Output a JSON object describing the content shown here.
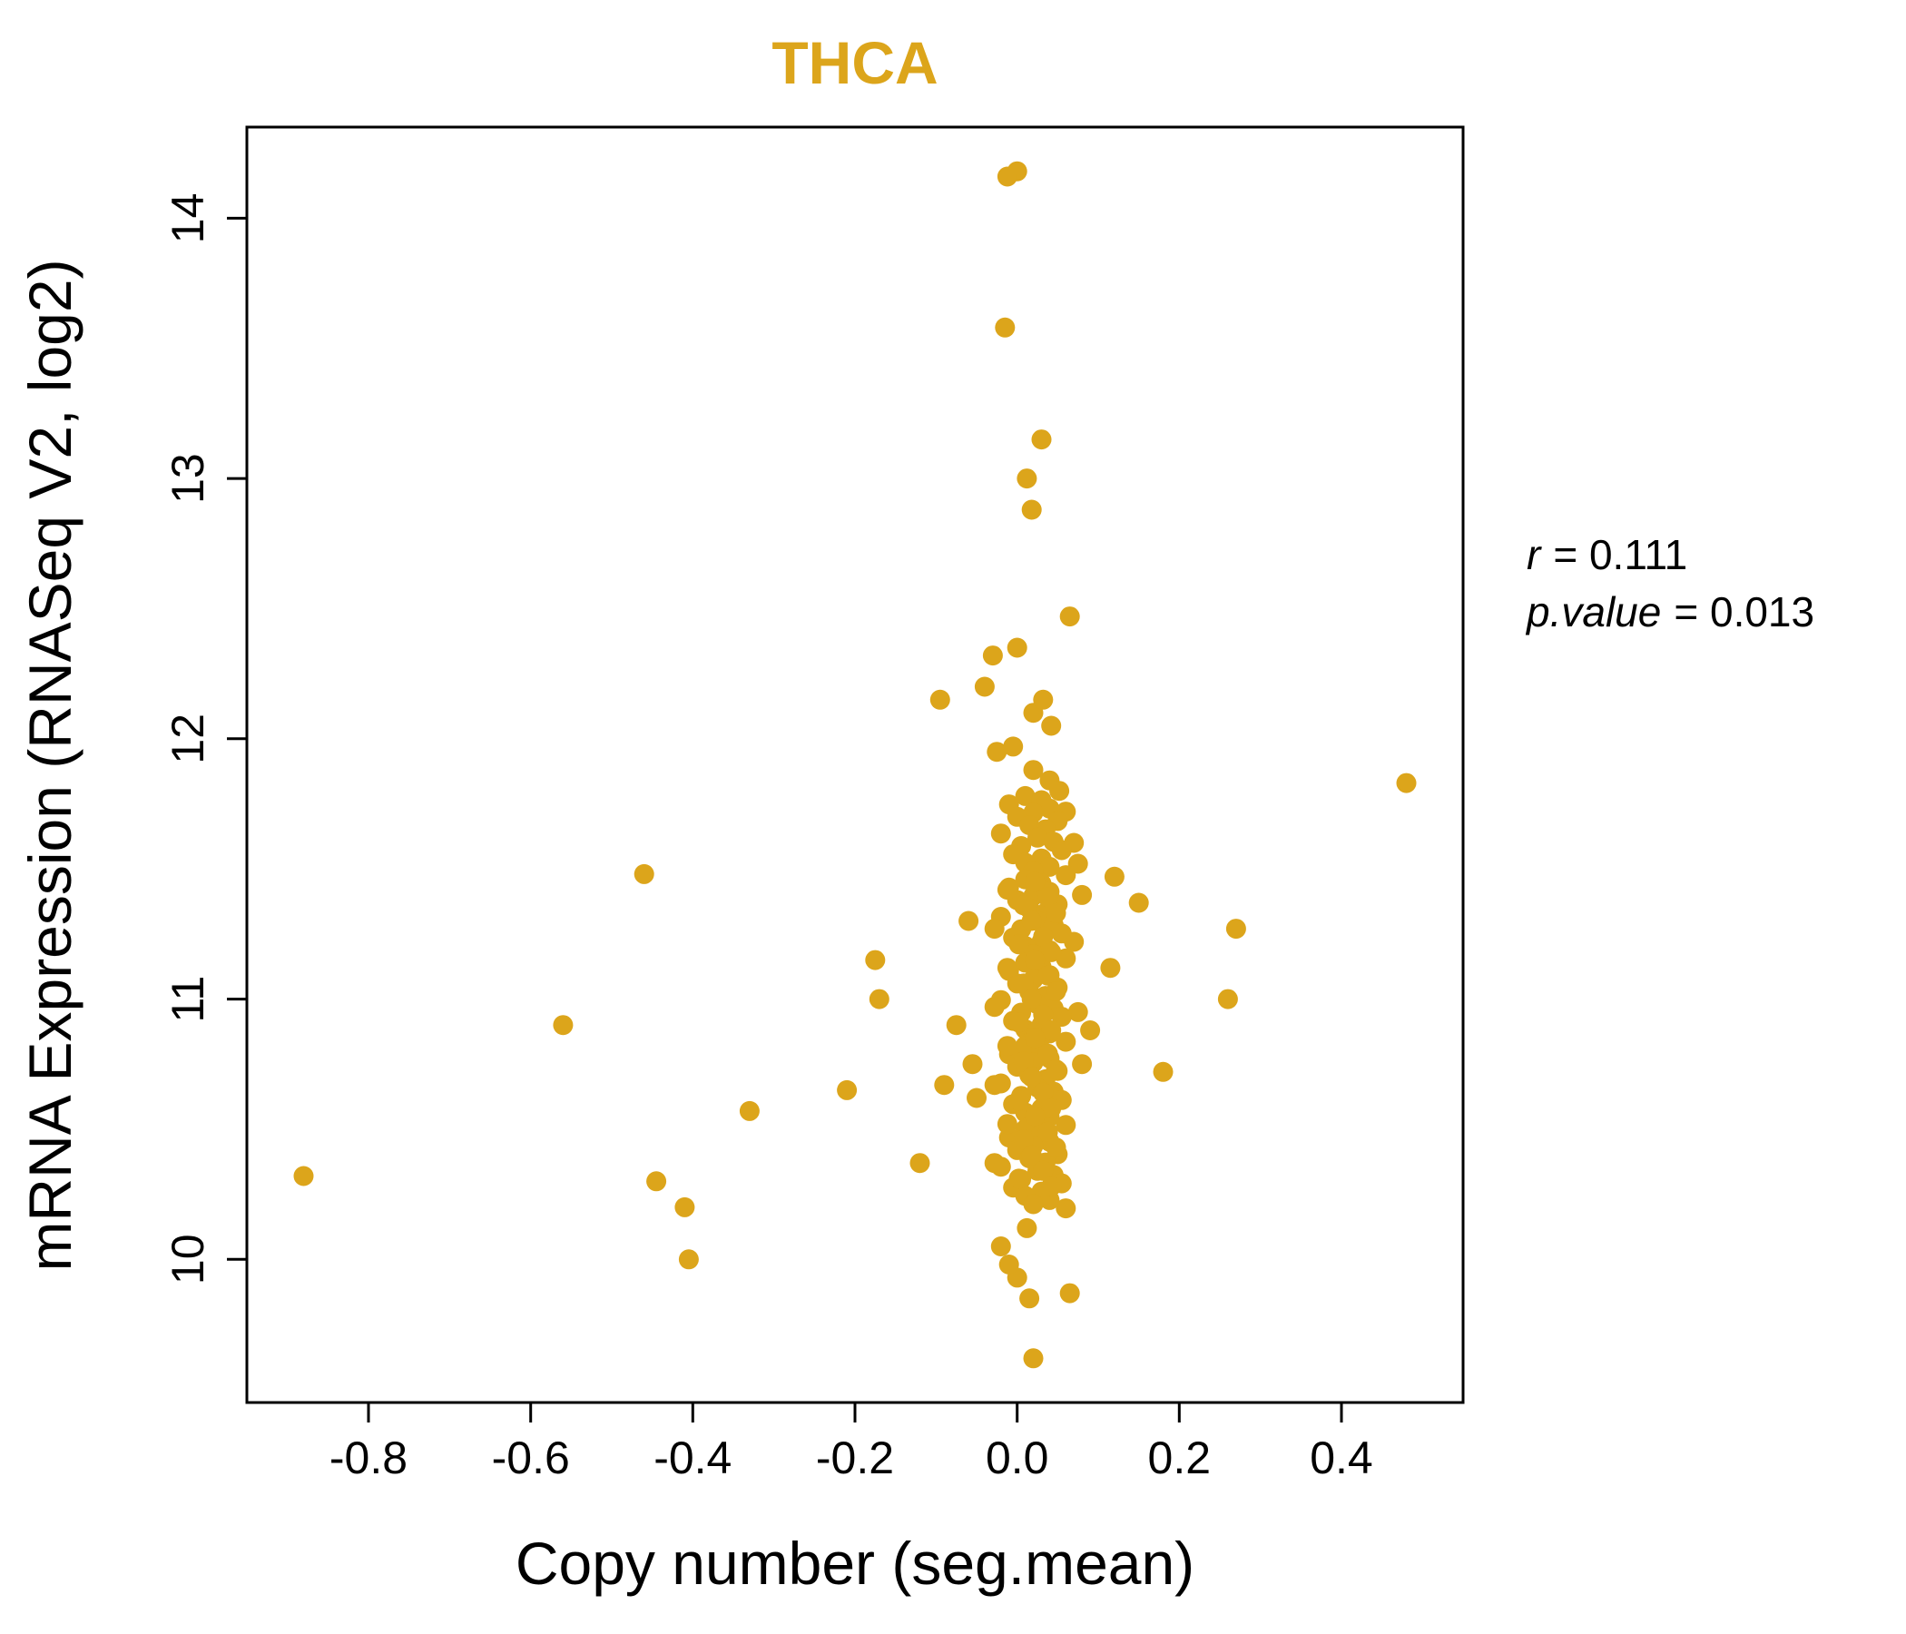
{
  "chart_data": {
    "type": "scatter",
    "title": "THCA",
    "title_color": "#DCA51B",
    "point_color": "#DCA51B",
    "xlabel": "Copy number (seg.mean)",
    "ylabel": "mRNA Expression (RNASeq V2, log2)",
    "xlim": [
      -0.95,
      0.55
    ],
    "ylim": [
      9.45,
      14.35
    ],
    "grid": false,
    "legend": "none",
    "x_ticks": [
      -0.8,
      -0.6,
      -0.4,
      -0.2,
      0.0,
      0.2,
      0.4
    ],
    "x_tick_labels": [
      "-0.8",
      "-0.6",
      "-0.4",
      "-0.2",
      "0.0",
      "0.2",
      "0.4"
    ],
    "y_ticks": [
      10,
      11,
      12,
      13,
      14
    ],
    "y_tick_labels": [
      "10",
      "11",
      "12",
      "13",
      "14"
    ],
    "annotation": {
      "r": 0.111,
      "p_value": 0.013,
      "r_label": "r",
      "r_value": "= 0.111",
      "p_label": "p.value",
      "p_value_text": "= 0.013"
    },
    "points": [
      [
        -0.88,
        10.32
      ],
      [
        -0.56,
        10.9
      ],
      [
        -0.46,
        11.48
      ],
      [
        -0.445,
        10.3
      ],
      [
        -0.41,
        10.2
      ],
      [
        -0.405,
        10.0
      ],
      [
        -0.33,
        10.57
      ],
      [
        -0.21,
        10.65
      ],
      [
        -0.175,
        11.15
      ],
      [
        -0.17,
        11.0
      ],
      [
        -0.12,
        10.37
      ],
      [
        -0.095,
        12.15
      ],
      [
        -0.09,
        10.67
      ],
      [
        -0.075,
        10.9
      ],
      [
        -0.06,
        11.3
      ],
      [
        -0.055,
        10.75
      ],
      [
        -0.05,
        10.62
      ],
      [
        -0.04,
        12.2
      ],
      [
        -0.03,
        12.32
      ],
      [
        -0.025,
        11.95
      ],
      [
        0.0,
        14.18
      ],
      [
        -0.012,
        14.16
      ],
      [
        -0.015,
        13.58
      ],
      [
        0.03,
        13.15
      ],
      [
        0.012,
        13.0
      ],
      [
        0.018,
        12.88
      ],
      [
        0.065,
        12.47
      ],
      [
        0.0,
        12.35
      ],
      [
        0.02,
        12.1
      ],
      [
        0.032,
        12.15
      ],
      [
        0.042,
        12.05
      ],
      [
        -0.005,
        11.97
      ],
      [
        0.02,
        11.88
      ],
      [
        0.04,
        11.84
      ],
      [
        0.052,
        11.8
      ],
      [
        0.06,
        11.72
      ],
      [
        0.07,
        11.6
      ],
      [
        0.075,
        11.52
      ],
      [
        0.48,
        11.83
      ],
      [
        0.27,
        11.27
      ],
      [
        0.26,
        11.0
      ],
      [
        0.18,
        10.72
      ],
      [
        0.15,
        11.37
      ],
      [
        0.12,
        11.47
      ],
      [
        0.115,
        11.12
      ],
      [
        0.08,
        11.4
      ],
      [
        0.09,
        10.88
      ],
      [
        0.07,
        11.22
      ],
      [
        0.08,
        10.75
      ],
      [
        0.075,
        10.95
      ],
      [
        -0.02,
        10.05
      ],
      [
        0.0,
        9.93
      ],
      [
        0.015,
        9.85
      ],
      [
        0.02,
        9.62
      ],
      [
        0.065,
        9.87
      ],
      [
        0.012,
        10.12
      ],
      [
        -0.01,
        9.98
      ],
      [
        0.01,
        11.78
      ],
      [
        0.03,
        11.764
      ],
      [
        -0.01,
        11.748
      ],
      [
        0.04,
        11.732
      ],
      [
        0.02,
        11.716
      ],
      [
        0.0,
        11.7
      ],
      [
        0.05,
        11.684
      ],
      [
        0.015,
        11.668
      ],
      [
        0.035,
        11.652
      ],
      [
        -0.02,
        11.636
      ],
      [
        0.025,
        11.62
      ],
      [
        0.045,
        11.604
      ],
      [
        0.005,
        11.588
      ],
      [
        0.055,
        11.572
      ],
      [
        -0.005,
        11.556
      ],
      [
        0.03,
        11.54
      ],
      [
        0.01,
        11.524
      ],
      [
        0.04,
        11.508
      ],
      [
        0.02,
        11.492
      ],
      [
        0.06,
        11.476
      ],
      [
        0.01,
        11.46
      ],
      [
        0.03,
        11.444
      ],
      [
        -0.01,
        11.428
      ],
      [
        0.04,
        11.412
      ],
      [
        0.02,
        11.396
      ],
      [
        0.0,
        11.38
      ],
      [
        0.05,
        11.364
      ],
      [
        0.015,
        11.348
      ],
      [
        0.035,
        11.332
      ],
      [
        -0.02,
        11.316
      ],
      [
        0.025,
        11.3
      ],
      [
        0.045,
        11.284
      ],
      [
        0.005,
        11.268
      ],
      [
        0.055,
        11.252
      ],
      [
        -0.005,
        11.236
      ],
      [
        0.03,
        11.22
      ],
      [
        0.01,
        11.204
      ],
      [
        0.04,
        11.188
      ],
      [
        0.02,
        11.172
      ],
      [
        0.06,
        11.156
      ],
      [
        0.01,
        11.14
      ],
      [
        0.03,
        11.124
      ],
      [
        -0.01,
        11.108
      ],
      [
        0.04,
        11.092
      ],
      [
        0.02,
        11.076
      ],
      [
        0.0,
        11.06
      ],
      [
        0.05,
        11.044
      ],
      [
        0.015,
        11.028
      ],
      [
        0.035,
        11.012
      ],
      [
        -0.02,
        10.996
      ],
      [
        0.025,
        10.98
      ],
      [
        0.045,
        10.964
      ],
      [
        0.005,
        10.948
      ],
      [
        0.055,
        10.932
      ],
      [
        -0.005,
        10.916
      ],
      [
        0.03,
        10.9
      ],
      [
        0.01,
        10.884
      ],
      [
        0.04,
        10.868
      ],
      [
        0.02,
        10.852
      ],
      [
        0.06,
        10.836
      ],
      [
        0.01,
        10.82
      ],
      [
        0.03,
        10.804
      ],
      [
        -0.01,
        10.788
      ],
      [
        0.04,
        10.772
      ],
      [
        0.02,
        10.756
      ],
      [
        0.0,
        10.74
      ],
      [
        0.05,
        10.724
      ],
      [
        0.015,
        10.708
      ],
      [
        0.035,
        10.692
      ],
      [
        -0.02,
        10.676
      ],
      [
        0.025,
        10.66
      ],
      [
        0.045,
        10.644
      ],
      [
        0.005,
        10.628
      ],
      [
        0.055,
        10.612
      ],
      [
        -0.005,
        10.596
      ],
      [
        0.03,
        10.58
      ],
      [
        0.01,
        10.564
      ],
      [
        0.04,
        10.548
      ],
      [
        0.02,
        10.532
      ],
      [
        0.06,
        10.516
      ],
      [
        0.01,
        10.5
      ],
      [
        0.03,
        10.484
      ],
      [
        -0.01,
        10.468
      ],
      [
        0.04,
        10.452
      ],
      [
        0.02,
        10.436
      ],
      [
        0.0,
        10.42
      ],
      [
        0.05,
        10.404
      ],
      [
        0.015,
        10.388
      ],
      [
        0.035,
        10.372
      ],
      [
        -0.02,
        10.356
      ],
      [
        0.025,
        10.34
      ],
      [
        0.045,
        10.324
      ],
      [
        0.005,
        10.308
      ],
      [
        0.055,
        10.292
      ],
      [
        -0.005,
        10.276
      ],
      [
        0.03,
        10.26
      ],
      [
        0.01,
        10.244
      ],
      [
        0.04,
        10.228
      ],
      [
        0.02,
        10.212
      ],
      [
        0.06,
        10.196
      ],
      [
        0.022,
        11.45
      ],
      [
        -0.012,
        11.42
      ],
      [
        0.038,
        11.39
      ],
      [
        0.008,
        11.36
      ],
      [
        0.048,
        11.33
      ],
      [
        0.018,
        11.3
      ],
      [
        -0.028,
        11.27
      ],
      [
        0.032,
        11.24
      ],
      [
        0.002,
        11.21
      ],
      [
        0.042,
        11.18
      ],
      [
        0.022,
        11.15
      ],
      [
        -0.012,
        11.12
      ],
      [
        0.038,
        11.09
      ],
      [
        0.008,
        11.06
      ],
      [
        0.048,
        11.03
      ],
      [
        0.018,
        11.0
      ],
      [
        -0.028,
        10.97
      ],
      [
        0.032,
        10.94
      ],
      [
        0.002,
        10.91
      ],
      [
        0.042,
        10.88
      ],
      [
        0.022,
        10.85
      ],
      [
        -0.012,
        10.82
      ],
      [
        0.038,
        10.79
      ],
      [
        0.008,
        10.76
      ],
      [
        0.048,
        10.73
      ],
      [
        0.018,
        10.7
      ],
      [
        -0.028,
        10.67
      ],
      [
        0.032,
        10.64
      ],
      [
        0.002,
        10.61
      ],
      [
        0.042,
        10.58
      ],
      [
        0.022,
        10.55
      ],
      [
        -0.012,
        10.52
      ],
      [
        0.038,
        10.49
      ],
      [
        0.008,
        10.46
      ],
      [
        0.048,
        10.43
      ],
      [
        0.018,
        10.4
      ],
      [
        -0.028,
        10.37
      ],
      [
        0.032,
        10.34
      ],
      [
        0.002,
        10.31
      ],
      [
        0.042,
        10.28
      ]
    ]
  }
}
